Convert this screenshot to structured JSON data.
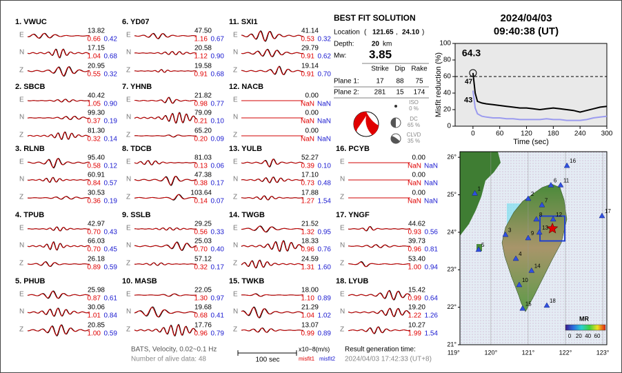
{
  "stations": [
    {
      "label": "1.  VWUC",
      "rows": [
        {
          "comp": "E",
          "amp": "13.82",
          "misfit1": "0.66",
          "misfit2": "0.42"
        },
        {
          "comp": "N",
          "amp": "17.15",
          "misfit1": "1.04",
          "misfit2": "0.68"
        },
        {
          "comp": "Z",
          "amp": "20.95",
          "misfit1": "0.55",
          "misfit2": "0.32"
        }
      ]
    },
    {
      "label": "2.  SBCB",
      "rows": [
        {
          "comp": "E",
          "amp": "40.42",
          "misfit1": "1.05",
          "misfit2": "0.90"
        },
        {
          "comp": "N",
          "amp": "99.30",
          "misfit1": "0.37",
          "misfit2": "0.19"
        },
        {
          "comp": "Z",
          "amp": "81.30",
          "misfit1": "0.32",
          "misfit2": "0.14"
        }
      ]
    },
    {
      "label": "3.  RLNB",
      "rows": [
        {
          "comp": "E",
          "amp": "95.40",
          "misfit1": "0.58",
          "misfit2": "0.12"
        },
        {
          "comp": "N",
          "amp": "60.91",
          "misfit1": "0.84",
          "misfit2": "0.57"
        },
        {
          "comp": "Z",
          "amp": "30.53",
          "misfit1": "0.36",
          "misfit2": "0.19"
        }
      ]
    },
    {
      "label": "4.  TPUB",
      "rows": [
        {
          "comp": "E",
          "amp": "42.97",
          "misfit1": "0.70",
          "misfit2": "0.43"
        },
        {
          "comp": "N",
          "amp": "66.03",
          "misfit1": "0.70",
          "misfit2": "0.45"
        },
        {
          "comp": "Z",
          "amp": "26.18",
          "misfit1": "0.89",
          "misfit2": "0.59"
        }
      ]
    },
    {
      "label": "5.  PHUB",
      "rows": [
        {
          "comp": "E",
          "amp": "25.98",
          "misfit1": "0.87",
          "misfit2": "0.61"
        },
        {
          "comp": "N",
          "amp": "30.06",
          "misfit1": "1.01",
          "misfit2": "0.84"
        },
        {
          "comp": "Z",
          "amp": "20.85",
          "misfit1": "1.00",
          "misfit2": "0.59"
        }
      ]
    },
    {
      "label": "6.  YD07",
      "rows": [
        {
          "comp": "E",
          "amp": "47.50",
          "misfit1": "1.16",
          "misfit2": "0.67"
        },
        {
          "comp": "N",
          "amp": "20.58",
          "misfit1": "1.12",
          "misfit2": "0.90"
        },
        {
          "comp": "Z",
          "amp": "19.58",
          "misfit1": "0.91",
          "misfit2": "0.68"
        }
      ]
    },
    {
      "label": "7.  YHNB",
      "rows": [
        {
          "comp": "E",
          "amp": "21.82",
          "misfit1": "0.98",
          "misfit2": "0.77"
        },
        {
          "comp": "N",
          "amp": "79.09",
          "misfit1": "0.21",
          "misfit2": "0.10"
        },
        {
          "comp": "Z",
          "amp": "65.20",
          "misfit1": "0.20",
          "misfit2": "0.09"
        }
      ]
    },
    {
      "label": "8.  TDCB",
      "rows": [
        {
          "comp": "E",
          "amp": "81.03",
          "misfit1": "0.13",
          "misfit2": "0.06"
        },
        {
          "comp": "N",
          "amp": "47.38",
          "misfit1": "0.38",
          "misfit2": "0.17"
        },
        {
          "comp": "Z",
          "amp": "103.64",
          "misfit1": "0.14",
          "misfit2": "0.07"
        }
      ]
    },
    {
      "label": "9.  SSLB",
      "rows": [
        {
          "comp": "E",
          "amp": "29.25",
          "misfit1": "0.56",
          "misfit2": "0.33"
        },
        {
          "comp": "N",
          "amp": "25.03",
          "misfit1": "0.70",
          "misfit2": "0.40"
        },
        {
          "comp": "Z",
          "amp": "57.12",
          "misfit1": "0.32",
          "misfit2": "0.17"
        }
      ]
    },
    {
      "label": "10.  MASB",
      "rows": [
        {
          "comp": "E",
          "amp": "22.05",
          "misfit1": "1.30",
          "misfit2": "0.97"
        },
        {
          "comp": "N",
          "amp": "19.68",
          "misfit1": "0.68",
          "misfit2": "0.41"
        },
        {
          "comp": "Z",
          "amp": "17.76",
          "misfit1": "0.96",
          "misfit2": "0.79"
        }
      ]
    },
    {
      "label": "11.  SXI1",
      "rows": [
        {
          "comp": "E",
          "amp": "41.14",
          "misfit1": "0.53",
          "misfit2": "0.32"
        },
        {
          "comp": "N",
          "amp": "29.79",
          "misfit1": "0.91",
          "misfit2": "0.62"
        },
        {
          "comp": "Z",
          "amp": "19.14",
          "misfit1": "0.91",
          "misfit2": "0.70"
        }
      ]
    },
    {
      "label": "12.  NACB",
      "rows": [
        {
          "comp": "E",
          "amp": "0.00",
          "misfit1": "NaN",
          "misfit2": "NaN"
        },
        {
          "comp": "N",
          "amp": "0.00",
          "misfit1": "NaN",
          "misfit2": "NaN"
        },
        {
          "comp": "Z",
          "amp": "0.00",
          "misfit1": "NaN",
          "misfit2": "NaN"
        }
      ]
    },
    {
      "label": "13.  YULB",
      "rows": [
        {
          "comp": "E",
          "amp": "52.27",
          "misfit1": "0.39",
          "misfit2": "0.10"
        },
        {
          "comp": "N",
          "amp": "17.10",
          "misfit1": "0.73",
          "misfit2": "0.48"
        },
        {
          "comp": "Z",
          "amp": "17.88",
          "misfit1": "1.27",
          "misfit2": "1.54"
        }
      ]
    },
    {
      "label": "14.  TWGB",
      "rows": [
        {
          "comp": "E",
          "amp": "21.52",
          "misfit1": "1.32",
          "misfit2": "0.95"
        },
        {
          "comp": "N",
          "amp": "18.33",
          "misfit1": "0.96",
          "misfit2": "0.76"
        },
        {
          "comp": "Z",
          "amp": "24.59",
          "misfit1": "1.31",
          "misfit2": "1.60"
        }
      ]
    },
    {
      "label": "15.  TWKB",
      "rows": [
        {
          "comp": "E",
          "amp": "18.00",
          "misfit1": "1.10",
          "misfit2": "0.89"
        },
        {
          "comp": "N",
          "amp": "21.29",
          "misfit1": "1.04",
          "misfit2": "1.02"
        },
        {
          "comp": "Z",
          "amp": "13.07",
          "misfit1": "0.99",
          "misfit2": "0.89"
        }
      ]
    },
    {
      "label": "16.  PCYB",
      "rows": [
        {
          "comp": "E",
          "amp": "0.00",
          "misfit1": "NaN",
          "misfit2": "NaN"
        },
        {
          "comp": "N",
          "amp": "0.00",
          "misfit1": "NaN",
          "misfit2": "NaN"
        },
        {
          "comp": "Z",
          "amp": "0.00",
          "misfit1": "NaN",
          "misfit2": "NaN"
        }
      ]
    },
    {
      "label": "17.  YNGF",
      "rows": [
        {
          "comp": "E",
          "amp": "44.62",
          "misfit1": "0.93",
          "misfit2": "0.56"
        },
        {
          "comp": "N",
          "amp": "39.73",
          "misfit1": "0.96",
          "misfit2": "0.81"
        },
        {
          "comp": "Z",
          "amp": "53.40",
          "misfit1": "1.00",
          "misfit2": "0.94"
        }
      ]
    },
    {
      "label": "18.  LYUB",
      "rows": [
        {
          "comp": "E",
          "amp": "15.42",
          "misfit1": "0.99",
          "misfit2": "0.64"
        },
        {
          "comp": "N",
          "amp": "19.20",
          "misfit1": "1.22",
          "misfit2": "1.26"
        },
        {
          "comp": "Z",
          "amp": "10.27",
          "misfit1": "1.99",
          "misfit2": "1.54"
        }
      ]
    }
  ],
  "solution": {
    "title": "BEST FIT SOLUTION",
    "location_label": "Location",
    "lon": "121.65",
    "lat": "24.10",
    "depth_label": "Depth:",
    "depth": "20",
    "depth_unit": "km",
    "mw_label": "Mw:",
    "mw": "3.85",
    "table": {
      "header": [
        "Strike",
        "Dip",
        "Rake"
      ],
      "rows": [
        {
          "label": "Plane 1:",
          "cells": [
            "17",
            "88",
            "75"
          ]
        },
        {
          "label": "Plane 2:",
          "cells": [
            "281",
            "15",
            "174"
          ]
        }
      ]
    },
    "components": [
      {
        "name": "ISO",
        "pct": "0 %"
      },
      {
        "name": "DC",
        "pct": "65 %"
      },
      {
        "name": "CLVD",
        "pct": "35 %"
      }
    ]
  },
  "date": "2024/04/03",
  "time": "09:40:38  (UT)",
  "chart_data": {
    "type": "line",
    "ylabel": "Misfit reduction (%)",
    "xlabel": "Time (sec)",
    "x": [
      0,
      5,
      10,
      20,
      30,
      45,
      60,
      75,
      90,
      105,
      120,
      135,
      150,
      165,
      180,
      195,
      210,
      225,
      240,
      255,
      270,
      285,
      300
    ],
    "series": [
      {
        "color": "#000000",
        "values": [
          64.3,
          40,
          30,
          28,
          27,
          26,
          25,
          24,
          23,
          22,
          22,
          21,
          20,
          21,
          22,
          21,
          20,
          19,
          17,
          19,
          21,
          23,
          24
        ]
      },
      {
        "color": "#9b9bef",
        "values": [
          43,
          22,
          15,
          12,
          11,
          10,
          10,
          9,
          9,
          8,
          8,
          8,
          8,
          9,
          8,
          8,
          7,
          7,
          7,
          8,
          10,
          11,
          12
        ]
      }
    ],
    "annotations": [
      {
        "text": "64.3",
        "color": "#e00000"
      },
      {
        "text": "47",
        "color": "#aaaaaa"
      },
      {
        "text": "43",
        "color": "#9b9bef"
      }
    ],
    "reference": 60,
    "xlim": [
      -40,
      300
    ],
    "xticks": [
      0,
      60,
      120,
      180,
      240,
      300
    ],
    "ylim": [
      0,
      100
    ],
    "yticks": [
      0,
      20,
      40,
      60,
      80,
      100
    ]
  },
  "map": {
    "xlim": [
      119.17,
      123.11
    ],
    "ylim": [
      21,
      26.15
    ],
    "xticks": [
      {
        "value": 119,
        "label": "119°"
      },
      {
        "value": 120,
        "label": "120°"
      },
      {
        "value": 121,
        "label": "121°"
      },
      {
        "value": 122,
        "label": "122°"
      },
      {
        "value": 123,
        "label": "123°"
      }
    ],
    "yticks": [
      {
        "value": 21,
        "label": "21°"
      },
      {
        "value": 22,
        "label": "22°"
      },
      {
        "value": 23,
        "label": "23°"
      },
      {
        "value": 24,
        "label": "24°"
      },
      {
        "value": 25,
        "label": "25°"
      },
      {
        "value": 26,
        "label": "26°"
      }
    ],
    "stations": [
      {
        "label": "1",
        "lon": 119.57,
        "lat": 25.04
      },
      {
        "label": "2",
        "lon": 121.0,
        "lat": 24.9
      },
      {
        "label": "3",
        "lon": 120.39,
        "lat": 23.94
      },
      {
        "label": "4",
        "lon": 120.67,
        "lat": 23.3
      },
      {
        "label": "5",
        "lon": 119.67,
        "lat": 23.54
      },
      {
        "label": "6",
        "lon": 121.61,
        "lat": 25.26
      },
      {
        "label": "7",
        "lon": 121.37,
        "lat": 24.73
      },
      {
        "label": "8",
        "lon": 121.22,
        "lat": 24.35
      },
      {
        "label": "9",
        "lon": 121.0,
        "lat": 23.85
      },
      {
        "label": "10",
        "lon": 120.76,
        "lat": 22.6
      },
      {
        "label": "11",
        "lon": 121.87,
        "lat": 25.26
      },
      {
        "label": "12",
        "lon": 121.67,
        "lat": 24.35
      },
      {
        "label": "13",
        "lon": 121.3,
        "lat": 24.0
      },
      {
        "label": "14",
        "lon": 121.09,
        "lat": 22.98
      },
      {
        "label": "15",
        "lon": 120.85,
        "lat": 21.97
      },
      {
        "label": "16",
        "lon": 122.04,
        "lat": 25.78
      },
      {
        "label": "17",
        "lon": 122.98,
        "lat": 24.44
      },
      {
        "label": "18",
        "lon": 121.5,
        "lat": 22.05
      }
    ],
    "colorbar": {
      "title": "MR",
      "lim": [
        0,
        60
      ],
      "ticks": [
        0,
        20,
        40,
        60
      ]
    }
  },
  "footer": {
    "filter": "BATS, Velocity, 0.02~0.1 Hz",
    "alive": "Number of alive data: 48",
    "scale": "100 sec",
    "units": "x10−8(m/s)",
    "misfit1": "misfit1",
    "misfit2": "misfit2",
    "gen_label": "Result generation time:",
    "gen_time": "2024/04/03 17:42:33 (UT+8)"
  }
}
